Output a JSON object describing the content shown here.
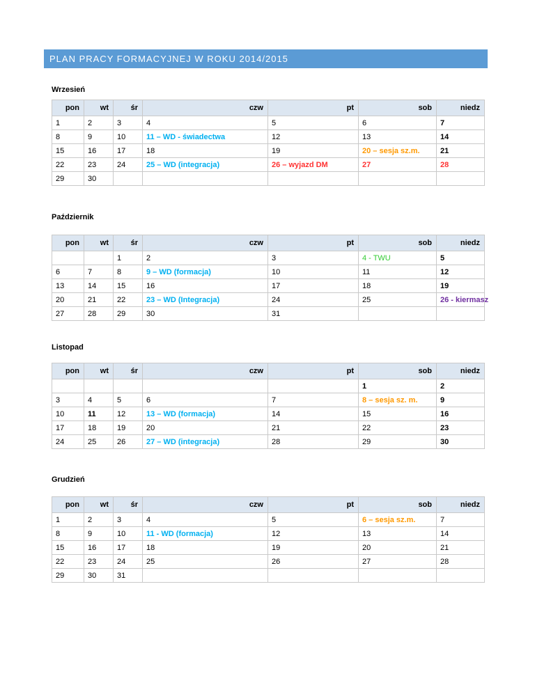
{
  "title": "PLAN PRACY FORMACYJNEJ W ROKU 2014/2015",
  "headers": [
    "pon",
    "wt",
    "śr",
    "czw",
    "pt",
    "sob",
    "niedz"
  ],
  "months": [
    {
      "name": "Wrzesień",
      "rows": [
        [
          {
            "t": "1"
          },
          {
            "t": "2"
          },
          {
            "t": "3"
          },
          {
            "t": "4"
          },
          {
            "t": "5"
          },
          {
            "t": "6"
          },
          {
            "t": "7",
            "s": "b"
          }
        ],
        [
          {
            "t": "8"
          },
          {
            "t": "9"
          },
          {
            "t": "10"
          },
          {
            "t": "11 – WD - świadectwa",
            "s": "cyan"
          },
          {
            "t": "12"
          },
          {
            "t": "13"
          },
          {
            "t": "14",
            "s": "b"
          }
        ],
        [
          {
            "t": "15"
          },
          {
            "t": "16"
          },
          {
            "t": "17"
          },
          {
            "t": "18"
          },
          {
            "t": "19"
          },
          {
            "t": "20 – sesja sz.m.",
            "s": "orange"
          },
          {
            "t": "21",
            "s": "b"
          }
        ],
        [
          {
            "t": "22"
          },
          {
            "t": "23"
          },
          {
            "t": "24"
          },
          {
            "t": "25 – WD (integracja)",
            "s": "cyan"
          },
          {
            "t": "26 – wyjazd DM",
            "s": "red"
          },
          {
            "t": "27",
            "s": "red"
          },
          {
            "t": "28",
            "s": "red"
          }
        ],
        [
          {
            "t": "29"
          },
          {
            "t": "30"
          },
          {
            "t": ""
          },
          {
            "t": ""
          },
          {
            "t": ""
          },
          {
            "t": ""
          },
          {
            "t": ""
          }
        ]
      ]
    },
    {
      "name": "Październik",
      "rows": [
        [
          {
            "t": ""
          },
          {
            "t": ""
          },
          {
            "t": "1"
          },
          {
            "t": "2"
          },
          {
            "t": "3"
          },
          {
            "t": "4 - TWU",
            "s": "green"
          },
          {
            "t": "5",
            "s": "b"
          }
        ],
        [
          {
            "t": "6"
          },
          {
            "t": "7"
          },
          {
            "t": "8"
          },
          {
            "t": "9 – WD (formacja)",
            "s": "cyan"
          },
          {
            "t": "10"
          },
          {
            "t": "11"
          },
          {
            "t": "12",
            "s": "b"
          }
        ],
        [
          {
            "t": "13"
          },
          {
            "t": "14"
          },
          {
            "t": "15"
          },
          {
            "t": "16"
          },
          {
            "t": "17"
          },
          {
            "t": "18"
          },
          {
            "t": "19",
            "s": "b"
          }
        ],
        [
          {
            "t": "20"
          },
          {
            "t": "21"
          },
          {
            "t": "22"
          },
          {
            "t": "23 – WD (Integracja)",
            "s": "cyan"
          },
          {
            "t": "24"
          },
          {
            "t": "25"
          },
          {
            "t": "26 - kiermasz",
            "s": "purple"
          }
        ],
        [
          {
            "t": "27"
          },
          {
            "t": "28"
          },
          {
            "t": "29"
          },
          {
            "t": "30"
          },
          {
            "t": "31"
          },
          {
            "t": ""
          },
          {
            "t": ""
          }
        ]
      ]
    },
    {
      "name": "Listopad",
      "rows": [
        [
          {
            "t": ""
          },
          {
            "t": ""
          },
          {
            "t": ""
          },
          {
            "t": ""
          },
          {
            "t": ""
          },
          {
            "t": "1",
            "s": "b"
          },
          {
            "t": "2",
            "s": "b"
          }
        ],
        [
          {
            "t": "3"
          },
          {
            "t": "4"
          },
          {
            "t": "5"
          },
          {
            "t": "6"
          },
          {
            "t": "7"
          },
          {
            "t": "8 – sesja sz. m.",
            "s": "orange"
          },
          {
            "t": "9",
            "s": "b"
          }
        ],
        [
          {
            "t": "10"
          },
          {
            "t": "11",
            "s": "b"
          },
          {
            "t": "12"
          },
          {
            "t": "13 – WD (formacja)",
            "s": "cyan"
          },
          {
            "t": "14"
          },
          {
            "t": "15"
          },
          {
            "t": "16",
            "s": "b"
          }
        ],
        [
          {
            "t": "17"
          },
          {
            "t": "18"
          },
          {
            "t": "19"
          },
          {
            "t": "20"
          },
          {
            "t": "21"
          },
          {
            "t": "22"
          },
          {
            "t": "23",
            "s": "b"
          }
        ],
        [
          {
            "t": "24"
          },
          {
            "t": "25"
          },
          {
            "t": "26"
          },
          {
            "t": "27 – WD (integracja)",
            "s": "cyan"
          },
          {
            "t": "28"
          },
          {
            "t": "29"
          },
          {
            "t": "30",
            "s": "b"
          }
        ]
      ]
    },
    {
      "name": "Grudzień",
      "rows": [
        [
          {
            "t": "1"
          },
          {
            "t": "2"
          },
          {
            "t": "3"
          },
          {
            "t": "4"
          },
          {
            "t": "5"
          },
          {
            "t": "6 – sesja sz.m.",
            "s": "orange"
          },
          {
            "t": "7"
          }
        ],
        [
          {
            "t": "8"
          },
          {
            "t": "9"
          },
          {
            "t": "10"
          },
          {
            "t": "11 - WD (formacja)",
            "s": "cyan"
          },
          {
            "t": "12"
          },
          {
            "t": "13"
          },
          {
            "t": "14"
          }
        ],
        [
          {
            "t": "15"
          },
          {
            "t": "16"
          },
          {
            "t": "17"
          },
          {
            "t": "18"
          },
          {
            "t": "19"
          },
          {
            "t": "20"
          },
          {
            "t": "21"
          }
        ],
        [
          {
            "t": "22"
          },
          {
            "t": "23"
          },
          {
            "t": "24"
          },
          {
            "t": "25"
          },
          {
            "t": "26"
          },
          {
            "t": "27"
          },
          {
            "t": "28"
          }
        ],
        [
          {
            "t": "29"
          },
          {
            "t": "30"
          },
          {
            "t": "31"
          },
          {
            "t": ""
          },
          {
            "t": ""
          },
          {
            "t": ""
          },
          {
            "t": ""
          }
        ]
      ]
    }
  ]
}
